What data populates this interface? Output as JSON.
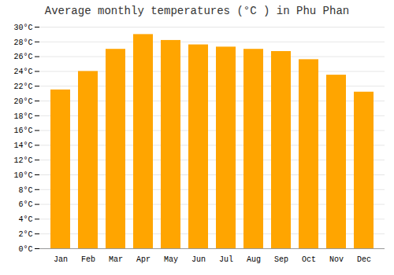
{
  "chart_data": {
    "type": "bar",
    "title": "Average monthly temperatures (°C ) in Phu Phan",
    "categories": [
      "Jan",
      "Feb",
      "Mar",
      "Apr",
      "May",
      "Jun",
      "Jul",
      "Aug",
      "Sep",
      "Oct",
      "Nov",
      "Dec"
    ],
    "values": [
      21.5,
      24.0,
      27.0,
      29.0,
      28.2,
      27.6,
      27.3,
      27.0,
      26.7,
      25.6,
      23.5,
      21.2
    ],
    "color": "#FFA500",
    "ylim": [
      0,
      30
    ],
    "yticks": [
      {
        "value": 0,
        "label": "0°C"
      },
      {
        "value": 2,
        "label": "2°C"
      },
      {
        "value": 4,
        "label": "4°C"
      },
      {
        "value": 6,
        "label": "6°C"
      },
      {
        "value": 8,
        "label": "8°C"
      },
      {
        "value": 10,
        "label": "10°C"
      },
      {
        "value": 12,
        "label": "12°C"
      },
      {
        "value": 14,
        "label": "14°C"
      },
      {
        "value": 16,
        "label": "16°C"
      },
      {
        "value": 18,
        "label": "18°C"
      },
      {
        "value": 20,
        "label": "20°C"
      },
      {
        "value": 22,
        "label": "22°C"
      },
      {
        "value": 24,
        "label": "24°C"
      },
      {
        "value": 26,
        "label": "26°C"
      },
      {
        "value": 28,
        "label": "28°C"
      },
      {
        "value": 30,
        "label": "30°C"
      }
    ],
    "grid": true
  }
}
